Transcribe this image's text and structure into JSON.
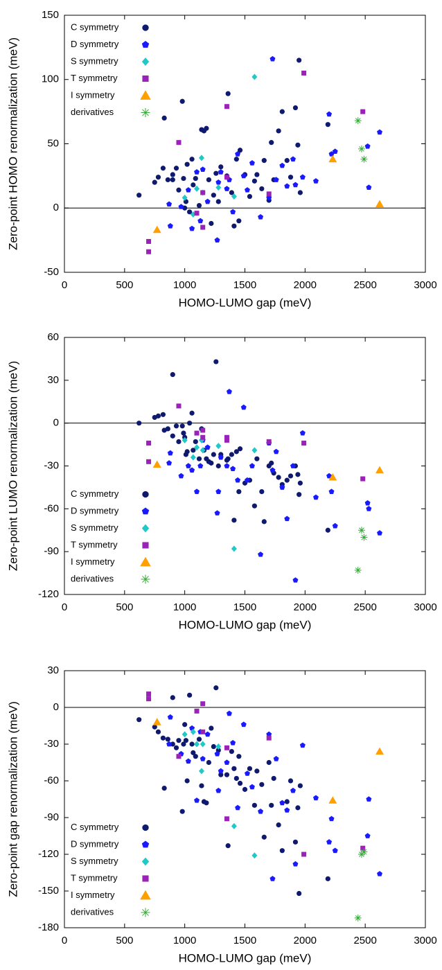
{
  "chart_data": [
    {
      "type": "scatter",
      "xlabel": "HOMO-LUMO gap (meV)",
      "ylabel": "Zero-point HOMO renormalization (meV)",
      "xlim": [
        0,
        3000
      ],
      "xticks": [
        0,
        500,
        1000,
        1500,
        2000,
        2500,
        3000
      ],
      "ylim": [
        -50,
        150
      ],
      "yticks": [
        -50,
        0,
        50,
        100,
        150
      ],
      "legend": "upper left",
      "series": [
        {
          "name": "C symmetry",
          "color": "#0f1a6e",
          "marker": "circle",
          "x": [
            620,
            750,
            780,
            820,
            830,
            860,
            900,
            900,
            930,
            950,
            980,
            990,
            1000,
            1010,
            1020,
            1040,
            1060,
            1070,
            1090,
            1120,
            1140,
            1160,
            1180,
            1200,
            1220,
            1240,
            1260,
            1280,
            1300,
            1350,
            1360,
            1390,
            1410,
            1430,
            1450,
            1460,
            1500,
            1540,
            1580,
            1600,
            1640,
            1660,
            1700,
            1720,
            1740,
            1780,
            1810,
            1850,
            1880,
            1920,
            1940,
            1950,
            1960,
            2190
          ],
          "y": [
            10,
            20,
            24,
            31,
            70,
            22,
            22,
            26,
            31,
            14,
            83,
            23,
            0,
            5,
            34,
            -3,
            38,
            18,
            23,
            2,
            61,
            60,
            62,
            22,
            -12,
            10,
            27,
            5,
            32,
            25,
            89,
            12,
            -14,
            38,
            -10,
            45,
            26,
            9,
            21,
            26,
            15,
            37,
            6,
            51,
            22,
            60,
            75,
            37,
            24,
            78,
            49,
            115,
            12,
            65
          ]
        },
        {
          "name": "D symmetry",
          "color": "#1a1aff",
          "marker": "pentagon",
          "x": [
            880,
            870,
            970,
            1030,
            1060,
            1100,
            1130,
            1150,
            1190,
            1270,
            1280,
            1300,
            1350,
            1370,
            1400,
            1440,
            1490,
            1520,
            1560,
            1630,
            1700,
            1730,
            1760,
            1810,
            1850,
            1900,
            1920,
            1980,
            2090,
            2200,
            2220,
            2250,
            2530,
            2520,
            2620
          ],
          "y": [
            -14,
            3,
            1,
            14,
            -16,
            28,
            -10,
            30,
            5,
            -25,
            20,
            28,
            15,
            22,
            -3,
            42,
            25,
            14,
            35,
            -7,
            8,
            116,
            22,
            33,
            17,
            38,
            18,
            24,
            21,
            73,
            42,
            44,
            16,
            48,
            59
          ]
        },
        {
          "name": "S symmetry",
          "color": "#20c8c8",
          "marker": "diamond",
          "x": [
            1000,
            1070,
            1100,
            1140,
            1280,
            1410,
            1580,
            1150
          ],
          "y": [
            8,
            -5,
            15,
            39,
            16,
            9,
            102,
            12
          ]
        },
        {
          "name": "T symmetry",
          "color": "#9b22b8",
          "marker": "square",
          "x": [
            700,
            700,
            950,
            1100,
            1150,
            1150,
            1350,
            1350,
            1700,
            1990,
            2480
          ],
          "y": [
            -26,
            -34,
            51,
            -4,
            12,
            -15,
            79,
            24,
            11,
            105,
            75
          ]
        },
        {
          "name": "I symmetry",
          "color": "#ffa000",
          "marker": "triangle",
          "x": [
            770,
            2230,
            2620
          ],
          "y": [
            -17,
            38,
            3
          ]
        },
        {
          "name": "derivatives",
          "color": "#33aa33",
          "marker": "asterisk",
          "x": [
            2440,
            2470,
            2490
          ],
          "y": [
            68,
            46,
            38
          ]
        }
      ]
    },
    {
      "type": "scatter",
      "xlabel": "HOMO-LUMO gap (meV)",
      "ylabel": "Zero-point LUMO renormalization (meV)",
      "xlim": [
        0,
        3000
      ],
      "xticks": [
        0,
        500,
        1000,
        1500,
        2000,
        2500,
        3000
      ],
      "ylim": [
        -120,
        60
      ],
      "yticks": [
        -120,
        -90,
        -60,
        -30,
        0,
        30,
        60
      ],
      "legend": "lower left",
      "series": [
        {
          "name": "C symmetry",
          "color": "#0f1a6e",
          "marker": "circle",
          "x": [
            620,
            750,
            780,
            820,
            830,
            860,
            900,
            900,
            930,
            950,
            980,
            990,
            1000,
            1010,
            1020,
            1040,
            1060,
            1070,
            1090,
            1120,
            1140,
            1160,
            1180,
            1200,
            1220,
            1240,
            1260,
            1280,
            1300,
            1350,
            1360,
            1390,
            1410,
            1430,
            1450,
            1460,
            1500,
            1540,
            1580,
            1600,
            1640,
            1660,
            1700,
            1720,
            1740,
            1780,
            1810,
            1850,
            1880,
            1920,
            1940,
            1950,
            1960,
            2190
          ],
          "y": [
            0,
            4,
            5,
            6,
            -5,
            -4,
            -9,
            34,
            -2,
            -13,
            -2,
            -7,
            -10,
            -22,
            -20,
            0,
            7,
            -19,
            -13,
            -25,
            -4,
            -19,
            -25,
            -27,
            -28,
            -22,
            43,
            -30,
            -22,
            -26,
            -25,
            -22,
            -68,
            -20,
            -48,
            -18,
            -42,
            -40,
            -58,
            -25,
            -48,
            -69,
            -30,
            -28,
            -35,
            -38,
            -43,
            -40,
            -37,
            -30,
            -36,
            -50,
            -42,
            -75
          ]
        },
        {
          "name": "D symmetry",
          "color": "#1a1aff",
          "marker": "pentagon",
          "x": [
            880,
            870,
            970,
            1030,
            1060,
            1100,
            1130,
            1150,
            1190,
            1270,
            1280,
            1300,
            1350,
            1370,
            1400,
            1440,
            1490,
            1520,
            1560,
            1630,
            1700,
            1730,
            1760,
            1810,
            1850,
            1900,
            1920,
            1980,
            2090,
            2200,
            2220,
            2250,
            2530,
            2520,
            2620
          ],
          "y": [
            -21,
            -28,
            -37,
            -30,
            -33,
            -48,
            -30,
            -12,
            -17,
            -63,
            -48,
            -24,
            -30,
            22,
            -32,
            -40,
            11,
            -40,
            -30,
            -92,
            -14,
            -33,
            -20,
            -45,
            -67,
            -30,
            -110,
            -7,
            -52,
            -37,
            -48,
            -72,
            -60,
            -56,
            -77
          ]
        },
        {
          "name": "S symmetry",
          "color": "#20c8c8",
          "marker": "diamond",
          "x": [
            1000,
            1070,
            1100,
            1140,
            1280,
            1410,
            1580,
            1150
          ],
          "y": [
            -12,
            -24,
            -17,
            -12,
            -16,
            -88,
            -19,
            -19
          ]
        },
        {
          "name": "T symmetry",
          "color": "#9b22b8",
          "marker": "square",
          "x": [
            700,
            700,
            950,
            1100,
            1150,
            1150,
            1350,
            1350,
            1700,
            1990,
            2480
          ],
          "y": [
            -14,
            -27,
            12,
            -7,
            -5,
            -10,
            -12,
            -10,
            -13,
            -14,
            -39
          ]
        },
        {
          "name": "I symmetry",
          "color": "#ffa000",
          "marker": "triangle",
          "x": [
            770,
            2230,
            2620
          ],
          "y": [
            -29,
            -38,
            -33
          ]
        },
        {
          "name": "derivatives",
          "color": "#33aa33",
          "marker": "asterisk",
          "x": [
            2440,
            2470,
            2490
          ],
          "y": [
            -103,
            -75,
            -80
          ]
        }
      ]
    },
    {
      "type": "scatter",
      "xlabel": "HOMO-LUMO gap (meV)",
      "ylabel": "Zero-point gap renormalization (meV)",
      "xlim": [
        0,
        3000
      ],
      "xticks": [
        0,
        500,
        1000,
        1500,
        2000,
        2500,
        3000
      ],
      "ylim": [
        -180,
        30
      ],
      "yticks": [
        -180,
        -150,
        -120,
        -90,
        -60,
        -30,
        0,
        30
      ],
      "legend": "lower left",
      "series": [
        {
          "name": "C symmetry",
          "color": "#0f1a6e",
          "marker": "circle",
          "x": [
            620,
            750,
            780,
            820,
            830,
            860,
            900,
            900,
            930,
            950,
            980,
            990,
            1000,
            1010,
            1020,
            1040,
            1060,
            1070,
            1090,
            1120,
            1140,
            1160,
            1180,
            1200,
            1220,
            1240,
            1260,
            1280,
            1300,
            1350,
            1360,
            1390,
            1410,
            1430,
            1450,
            1460,
            1500,
            1540,
            1580,
            1600,
            1640,
            1660,
            1700,
            1720,
            1740,
            1780,
            1810,
            1850,
            1880,
            1920,
            1940,
            1950,
            1960,
            2190
          ],
          "y": [
            -10,
            -16,
            -20,
            -25,
            -66,
            -26,
            -30,
            8,
            -33,
            -27,
            -85,
            -30,
            -14,
            -27,
            -60,
            10,
            -30,
            -37,
            -40,
            -26,
            -64,
            -77,
            -78,
            -45,
            -17,
            -32,
            16,
            -35,
            -55,
            -55,
            -113,
            -36,
            -50,
            -58,
            -40,
            -62,
            -67,
            -50,
            -80,
            -52,
            -63,
            -106,
            -45,
            -80,
            -58,
            -96,
            -117,
            -77,
            -60,
            -110,
            -82,
            -152,
            -64,
            -140
          ]
        },
        {
          "name": "D symmetry",
          "color": "#1a1aff",
          "marker": "pentagon",
          "x": [
            880,
            870,
            970,
            1030,
            1060,
            1100,
            1130,
            1150,
            1190,
            1270,
            1280,
            1300,
            1350,
            1370,
            1400,
            1440,
            1490,
            1520,
            1560,
            1630,
            1700,
            1730,
            1760,
            1810,
            1850,
            1900,
            1920,
            1980,
            2090,
            2200,
            2220,
            2250,
            2530,
            2520,
            2620
          ],
          "y": [
            -8,
            -30,
            -38,
            -44,
            -17,
            -76,
            -20,
            -42,
            -22,
            -38,
            -68,
            -52,
            -45,
            -5,
            -29,
            -82,
            -14,
            -54,
            -65,
            -85,
            -22,
            -140,
            -42,
            -78,
            -84,
            -68,
            -128,
            -31,
            -74,
            -110,
            -91,
            -117,
            -75,
            -105,
            -136
          ]
        },
        {
          "name": "S symmetry",
          "color": "#20c8c8",
          "marker": "diamond",
          "x": [
            1000,
            1070,
            1100,
            1140,
            1280,
            1410,
            1580,
            1150
          ],
          "y": [
            -22,
            -20,
            -30,
            -52,
            -32,
            -97,
            -121,
            -30
          ]
        },
        {
          "name": "T symmetry",
          "color": "#9b22b8",
          "marker": "square",
          "x": [
            700,
            700,
            950,
            1100,
            1150,
            1150,
            1350,
            1350,
            1700,
            1990,
            2480
          ],
          "y": [
            11,
            7,
            -40,
            -3,
            3,
            -20,
            -91,
            -33,
            -25,
            -120,
            -115
          ]
        },
        {
          "name": "I symmetry",
          "color": "#ffa000",
          "marker": "triangle",
          "x": [
            770,
            2230,
            2620
          ],
          "y": [
            -12,
            -76,
            -36
          ]
        },
        {
          "name": "derivatives",
          "color": "#33aa33",
          "marker": "asterisk",
          "x": [
            2440,
            2470,
            2490
          ],
          "y": [
            -172,
            -120,
            -118
          ]
        }
      ]
    }
  ]
}
